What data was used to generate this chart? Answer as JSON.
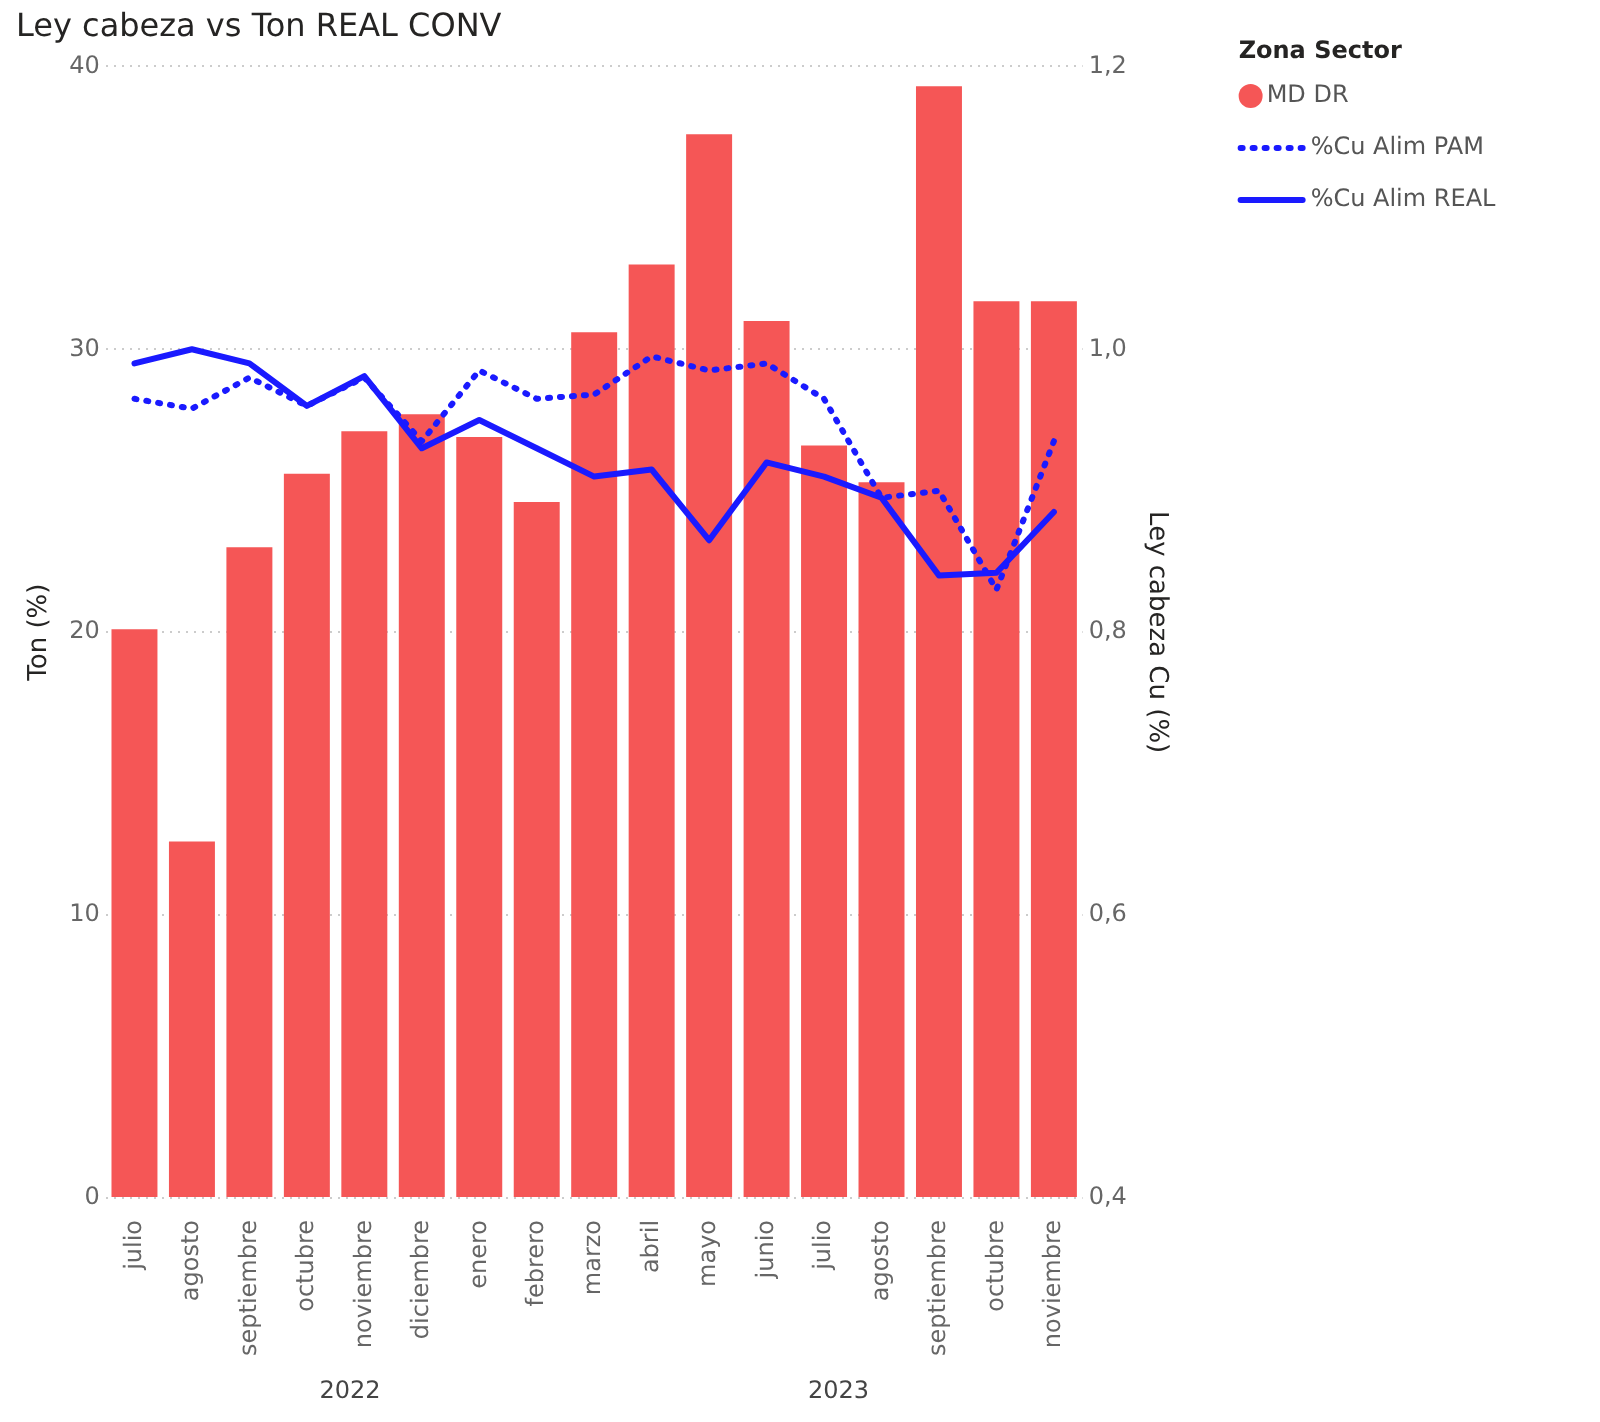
{
  "chart_data": {
    "type": "bar",
    "title": "Ley cabeza vs Ton REAL CONV",
    "ylabel": "Ton (%)",
    "y2label": "Ley cabeza Cu (%)",
    "legend_title": "Zona Sector",
    "categories": [
      "julio",
      "agosto",
      "septiembre",
      "octubre",
      "noviembre",
      "diciembre",
      "enero",
      "febrero",
      "marzo",
      "abril",
      "mayo",
      "junio",
      "julio",
      "agosto",
      "septiembre",
      "octubre",
      "noviembre"
    ],
    "series": [
      {
        "name": "MD DR",
        "color": "#f55656",
        "values": [
          20.1,
          12.6,
          23.0,
          25.6,
          27.1,
          27.7,
          26.9,
          24.6,
          30.6,
          33.0,
          37.6,
          31.0,
          26.6,
          25.3,
          39.3,
          31.7,
          31.7
        ]
      },
      {
        "name": "%Cu Alim PAM",
        "type": "line",
        "axis": "y2",
        "line_style": "dotted",
        "color": "#1a1aff",
        "values": [
          0.965,
          0.958,
          0.98,
          0.96,
          0.98,
          0.935,
          0.985,
          0.965,
          0.968,
          0.995,
          0.985,
          0.99,
          0.965,
          0.895,
          0.9,
          0.83,
          0.935
        ]
      },
      {
        "name": "%Cu Alim REAL",
        "type": "line",
        "axis": "y2",
        "line_style": "solid",
        "color": "#1a1aff",
        "values": [
          0.99,
          1.0,
          0.99,
          0.96,
          0.981,
          0.93,
          0.95,
          0.93,
          0.91,
          0.915,
          0.865,
          0.92,
          0.91,
          0.895,
          0.84,
          0.842,
          0.885
        ]
      }
    ],
    "ylim": [
      0,
      40
    ],
    "yticks": [
      0,
      10,
      20,
      30,
      40
    ],
    "y2lim": [
      0.4,
      1.2
    ],
    "y2ticks": [
      {
        "value": 0.4,
        "label": "0,4"
      },
      {
        "value": 0.6,
        "label": "0,6"
      },
      {
        "value": 0.8,
        "label": "0,8"
      },
      {
        "value": 1.0,
        "label": "1,0"
      },
      {
        "value": 1.2,
        "label": "1,2"
      }
    ],
    "annotations": [
      "2022",
      "2023"
    ],
    "grid": "y",
    "legend": "top right",
    "marker": "none"
  }
}
